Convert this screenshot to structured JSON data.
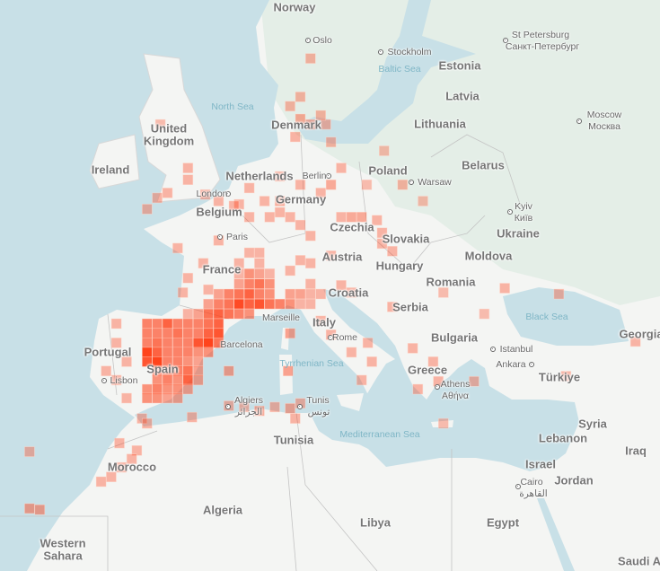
{
  "map": {
    "colors": {
      "sea": "#c8e0e7",
      "land": "#f4f5f3",
      "land_green": "#e4eee7",
      "border": "#b9b9b9",
      "cell": "#ff3a10",
      "cell_light": "#ffb7a3"
    },
    "labels": {
      "norway": "Norway",
      "oslo": "Oslo",
      "stockholm": "Stockholm",
      "baltic_sea": "Baltic Sea",
      "estonia": "Estonia",
      "st_petersburg": "St Petersburg",
      "st_petersburg_ru": "Санкт-Петербург",
      "latvia": "Latvia",
      "lithuania": "Lithuania",
      "moscow": "Moscow",
      "moscow_ru": "Москва",
      "north_sea": "North Sea",
      "united": "United",
      "kingdom": "Kingdom",
      "denmark": "Denmark",
      "ireland": "Ireland",
      "netherlands": "Netherlands",
      "berlin": "Berlin",
      "poland": "Poland",
      "warsaw": "Warsaw",
      "belarus": "Belarus",
      "london": "London",
      "germany": "Germany",
      "belgium": "Belgium",
      "kyiv": "Kyiv",
      "kyiv_ua": "Київ",
      "czechia": "Czechia",
      "ukraine": "Ukraine",
      "paris": "Paris",
      "slovakia": "Slovakia",
      "france": "France",
      "austria": "Austria",
      "hungary": "Hungary",
      "moldova": "Moldova",
      "romania": "Romania",
      "croatia": "Croatia",
      "black_sea": "Black Sea",
      "portugal": "Portugal",
      "marseille": "Marseille",
      "italy": "Italy",
      "serbia": "Serbia",
      "bulgaria": "Bulgaria",
      "georgia": "Georgia",
      "barcelona": "Barcelona",
      "rome": "Rome",
      "istanbul": "Istanbul",
      "ankara": "Ankara",
      "turkiye": "Türkiye",
      "spain": "Spain",
      "lisbon": "Lisbon",
      "tyrrhenian_sea": "Tyrrhenian Sea",
      "greece": "Greece",
      "athens": "Athens",
      "athens_gr": "Αθήνα",
      "algiers": "Algiers",
      "algiers_ar": "الجزائر",
      "tunis": "Tunis",
      "tunis_ar": "تونس",
      "syria": "Syria",
      "mediterranean_sea": "Mediterranean Sea",
      "tunisia": "Tunisia",
      "lebanon": "Lebanon",
      "iraq": "Iraq",
      "israel": "Israel",
      "morocco": "Morocco",
      "jordan": "Jordan",
      "cairo": "Cairo",
      "cairo_ar": "القاهرة",
      "algeria": "Algeria",
      "libya": "Libya",
      "egypt": "Egypt",
      "western": "Western",
      "sahara": "Sahara",
      "saudi": "Saudi A"
    },
    "density_cells": [
      {
        "lat": 47.7,
        "pts": [
          [
            5,
            0.3
          ],
          [
            6,
            0.3
          ]
        ]
      },
      {
        "lat": 47.0,
        "pts": [
          [
            4,
            0.3
          ],
          [
            6,
            0.3
          ]
        ]
      },
      {
        "lat": 46.3,
        "pts": [
          [
            4,
            0.3
          ],
          [
            5,
            0.5
          ],
          [
            6,
            0.4
          ],
          [
            7,
            0.3
          ]
        ]
      },
      {
        "lat": 45.6,
        "pts": [
          [
            4,
            0.4
          ],
          [
            5,
            0.6
          ],
          [
            6,
            0.7
          ],
          [
            7,
            0.5
          ],
          [
            11,
            0.3
          ]
        ]
      },
      {
        "lat": 44.9,
        "pts": [
          [
            2,
            0.4
          ],
          [
            3,
            0.6
          ],
          [
            4,
            0.7
          ],
          [
            5,
            0.8
          ],
          [
            6,
            0.6
          ],
          [
            7,
            0.5
          ],
          [
            9,
            0.4
          ],
          [
            10,
            0.4
          ],
          [
            11,
            0.3
          ],
          [
            12,
            0.3
          ]
        ]
      },
      {
        "lat": 44.2,
        "pts": [
          [
            1,
            0.4
          ],
          [
            2,
            0.6
          ],
          [
            3,
            0.7
          ],
          [
            4,
            0.95
          ],
          [
            5,
            0.8
          ],
          [
            6,
            0.9
          ],
          [
            7,
            0.7
          ],
          [
            8,
            0.6
          ],
          [
            9,
            0.5
          ],
          [
            10,
            0.3
          ],
          [
            11,
            0.3
          ]
        ]
      },
      {
        "lat": 43.5,
        "pts": [
          [
            -1,
            0.3
          ],
          [
            0,
            0.4
          ],
          [
            1,
            0.7
          ],
          [
            2,
            0.8
          ],
          [
            3,
            0.7
          ],
          [
            4,
            0.6
          ],
          [
            5,
            0.5
          ]
        ]
      },
      {
        "lat": 42.8,
        "pts": [
          [
            -8,
            0.3
          ],
          [
            -5,
            0.6
          ],
          [
            -4,
            0.6
          ],
          [
            -3,
            0.8
          ],
          [
            -2,
            0.6
          ],
          [
            -1,
            0.6
          ],
          [
            0,
            0.6
          ],
          [
            1,
            0.7
          ],
          [
            2,
            0.8
          ]
        ]
      },
      {
        "lat": 42.1,
        "pts": [
          [
            -5,
            0.6
          ],
          [
            -4,
            0.6
          ],
          [
            -3,
            0.6
          ],
          [
            -2,
            0.7
          ],
          [
            -1,
            0.6
          ],
          [
            0,
            0.6
          ],
          [
            1,
            0.8
          ],
          [
            2,
            0.9
          ],
          [
            9,
            0.4
          ]
        ]
      },
      {
        "lat": 41.4,
        "pts": [
          [
            -8,
            0.3
          ],
          [
            -5,
            0.6
          ],
          [
            -4,
            0.7
          ],
          [
            -3,
            0.6
          ],
          [
            -2,
            0.6
          ],
          [
            -1,
            0.6
          ],
          [
            0,
            0.9
          ],
          [
            1,
            1.0
          ],
          [
            2,
            0.7
          ],
          [
            16.6,
            0.3
          ]
        ]
      },
      {
        "lat": 40.7,
        "pts": [
          [
            -5,
            1.0
          ],
          [
            -4,
            0.8
          ],
          [
            -3,
            0.6
          ],
          [
            -2,
            0.6
          ],
          [
            -1,
            0.6
          ],
          [
            0,
            0.5
          ],
          [
            1,
            0.5
          ],
          [
            15,
            0.3
          ]
        ]
      },
      {
        "lat": 40.0,
        "pts": [
          [
            -7,
            0.3
          ],
          [
            -5,
            0.9
          ],
          [
            -4,
            1.0
          ],
          [
            -3,
            0.6
          ],
          [
            -2,
            0.6
          ],
          [
            -1,
            0.5
          ],
          [
            0,
            0.4
          ],
          [
            17,
            0.3
          ]
        ]
      },
      {
        "lat": 39.3,
        "pts": [
          [
            -9,
            0.3
          ],
          [
            -4,
            0.6
          ],
          [
            -3,
            0.5
          ],
          [
            -2,
            0.6
          ],
          [
            -1,
            0.7
          ],
          [
            0,
            0.4
          ],
          [
            3,
            0.4
          ],
          [
            8.8,
            0.4
          ]
        ]
      },
      {
        "lat": 38.6,
        "pts": [
          [
            -8,
            0.3
          ],
          [
            -4,
            0.5
          ],
          [
            -3,
            0.6
          ],
          [
            -2,
            0.5
          ],
          [
            -1,
            0.8
          ],
          [
            0,
            0.4
          ],
          [
            16,
            0.3
          ]
        ]
      },
      {
        "lat": 37.9,
        "pts": [
          [
            -5,
            0.5
          ],
          [
            -4,
            0.6
          ],
          [
            -3,
            0.5
          ],
          [
            -2,
            0.5
          ],
          [
            -1,
            0.4
          ],
          [
            21.5,
            0.3
          ]
        ]
      },
      {
        "lat": 37.2,
        "pts": [
          [
            -7,
            0.3
          ],
          [
            -5,
            0.5
          ],
          [
            -4,
            0.5
          ],
          [
            -3,
            0.4
          ],
          [
            -2,
            0.4
          ]
        ]
      }
    ],
    "scattered_cells": [
      [
        12,
        43,
        0.3
      ],
      [
        13,
        42,
        0.3
      ],
      [
        14,
        45.5,
        0.3
      ],
      [
        15,
        45,
        0.3
      ],
      [
        19,
        44,
        0.3
      ],
      [
        21,
        41,
        0.3
      ],
      [
        23,
        40,
        0.3
      ],
      [
        23.5,
        38.5,
        0.3
      ],
      [
        13,
        47.5,
        0.3
      ],
      [
        11,
        47,
        0.3
      ],
      [
        9,
        46.5,
        0.3
      ],
      [
        10,
        47.2,
        0.3
      ],
      [
        15,
        50,
        0.35
      ],
      [
        16,
        50,
        0.35
      ],
      [
        14,
        50,
        0.3
      ],
      [
        17.5,
        49.8,
        0.3
      ],
      [
        18,
        49,
        0.3
      ],
      [
        18,
        48.3,
        0.3
      ],
      [
        19,
        47.8,
        0.3
      ],
      [
        8,
        51,
        0.35
      ],
      [
        9,
        50,
        0.3
      ],
      [
        10,
        49.5,
        0.3
      ],
      [
        11,
        48.8,
        0.3
      ],
      [
        7,
        50,
        0.3
      ],
      [
        6.5,
        51,
        0.3
      ],
      [
        13,
        52,
        0.35
      ],
      [
        12,
        51.5,
        0.3
      ],
      [
        14,
        53,
        0.3
      ],
      [
        10,
        52,
        0.3
      ],
      [
        8,
        52.5,
        0.3
      ],
      [
        8,
        50.3,
        0.3
      ],
      [
        5,
        51.8,
        0.3
      ],
      [
        4,
        50.8,
        0.3
      ],
      [
        3.5,
        50.7,
        0.3
      ],
      [
        5,
        50,
        0.3
      ],
      [
        10,
        55.8,
        0.35
      ],
      [
        11,
        55.5,
        0.35
      ],
      [
        9,
        56.5,
        0.3
      ],
      [
        10,
        57,
        0.3
      ],
      [
        12.5,
        55.5,
        0.3
      ],
      [
        9.5,
        54.8,
        0.3
      ],
      [
        12,
        56,
        0.3
      ],
      [
        13,
        54.5,
        0.3
      ],
      [
        11,
        59,
        0.3
      ],
      [
        20,
        52,
        0.3
      ],
      [
        22,
        51,
        0.25
      ],
      [
        16.5,
        52,
        0.25
      ],
      [
        18.2,
        54,
        0.25
      ],
      [
        -1,
        53,
        0.3
      ],
      [
        -1,
        52.3,
        0.3
      ],
      [
        -3,
        51.5,
        0.3
      ],
      [
        -4,
        51.2,
        0.3
      ],
      [
        -3.7,
        55.5,
        0.25
      ],
      [
        -5,
        50.5,
        0.3
      ],
      [
        0.7,
        51.4,
        0.3
      ],
      [
        2,
        51,
        0.3
      ],
      [
        -2,
        48,
        0.3
      ],
      [
        -1,
        46,
        0.3
      ],
      [
        -1.5,
        45,
        0.3
      ],
      [
        0.5,
        47,
        0.3
      ],
      [
        2,
        48.5,
        0.3
      ],
      [
        1,
        45.2,
        0.3
      ],
      [
        24,
        45,
        0.25
      ],
      [
        28,
        43.5,
        0.25
      ],
      [
        30,
        45.3,
        0.3
      ],
      [
        35.3,
        44.9,
        0.3
      ],
      [
        27,
        38.5,
        0.3
      ],
      [
        36,
        38.9,
        0.3
      ],
      [
        42.8,
        41.5,
        0.3
      ],
      [
        24,
        35.2,
        0.25
      ],
      [
        -0.6,
        35.7,
        0.3
      ],
      [
        3,
        36.6,
        0.3
      ],
      [
        4.5,
        36.5,
        0.3
      ],
      [
        6,
        36.2,
        0.35
      ],
      [
        7.5,
        36.5,
        0.3
      ],
      [
        9,
        36.4,
        0.35
      ],
      [
        10,
        36.8,
        0.3
      ],
      [
        9.5,
        35.6,
        0.3
      ],
      [
        -5.5,
        35.6,
        0.3
      ],
      [
        -5,
        35.2,
        0.3
      ],
      [
        -7.7,
        33.6,
        0.3
      ],
      [
        -6,
        33,
        0.3
      ],
      [
        -7.5,
        31.6,
        0.35
      ],
      [
        -8.5,
        30.8,
        0.3
      ],
      [
        -6.5,
        32.3,
        0.3
      ],
      [
        -9.5,
        30.4,
        0.3
      ],
      [
        -15.5,
        28,
        0.4
      ],
      [
        -16.5,
        28.1,
        0.4
      ],
      [
        -16.5,
        32.9,
        0.3
      ]
    ]
  }
}
